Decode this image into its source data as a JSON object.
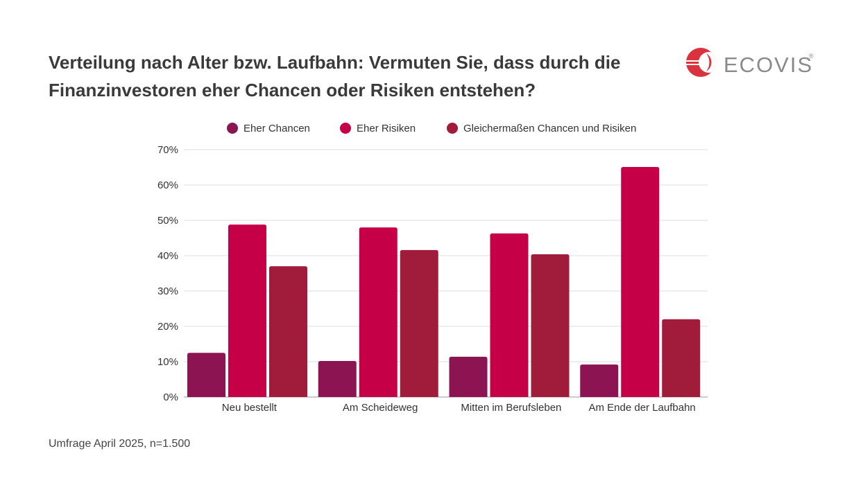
{
  "chart_data": {
    "type": "bar",
    "title": "Verteilung nach Alter bzw. Laufbahn: Vermuten Sie, dass durch die Finanzinvestoren eher Chancen oder Risiken entstehen?",
    "categories": [
      "Neu bestellt",
      "Am Scheideweg",
      "Mitten im Berufsleben",
      "Am Ende der Laufbahn"
    ],
    "series": [
      {
        "name": "Eher Chancen",
        "color": "#8c1452",
        "values": [
          12.5,
          10.2,
          11.4,
          9.2
        ]
      },
      {
        "name": "Eher Risiken",
        "color": "#c60046",
        "values": [
          48.8,
          48.0,
          46.3,
          65.1
        ]
      },
      {
        "name": "Gleichermaßen Chancen und Risiken",
        "color": "#a01c3a",
        "values": [
          37.0,
          41.6,
          40.4,
          22.0
        ]
      }
    ],
    "yticks": [
      "0%",
      "10%",
      "20%",
      "30%",
      "40%",
      "50%",
      "60%",
      "70%"
    ],
    "ylim": [
      0,
      70
    ],
    "grid": true,
    "legend_position": "top",
    "xlabel": "",
    "ylabel": ""
  },
  "source": "Umfrage April 2025, n=1.500",
  "logo": {
    "text": "ECOVIS",
    "color": "#d9333f"
  }
}
